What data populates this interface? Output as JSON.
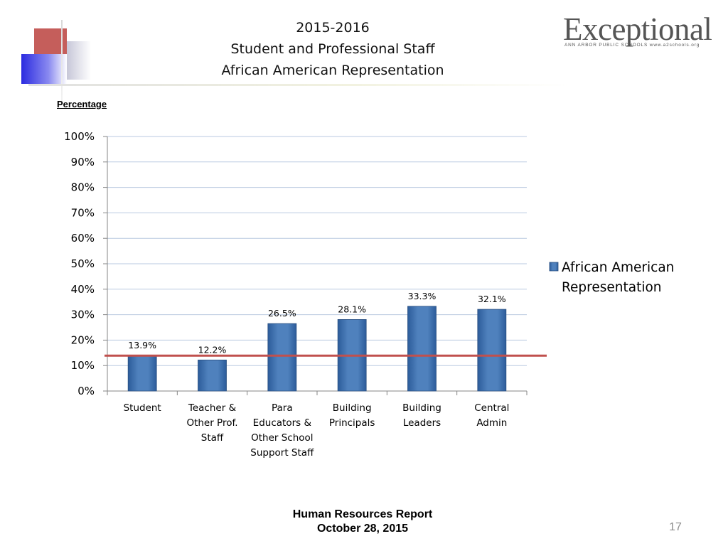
{
  "slide": {
    "title_lines": [
      "2015-2016",
      "Student and Professional Staff",
      "African American Representation"
    ],
    "page_number": "17",
    "footer_lines": [
      "Human Resources  Report",
      "October 28, 2015"
    ]
  },
  "logo": {
    "wordmark": "Exceptional",
    "tagline": "ANN ARBOR PUBLIC SCHOOLS www.a2schools.org"
  },
  "colors": {
    "bar": "#4f81bd",
    "bar_dark": "#2c5c9a",
    "reference_line": "#c0504d",
    "grid": "#b9c9e0"
  },
  "chart_data": {
    "type": "bar",
    "ylabel": "Percentage",
    "ylim": [
      0,
      100
    ],
    "yticks": [
      "0%",
      "10%",
      "20%",
      "30%",
      "40%",
      "50%",
      "60%",
      "70%",
      "80%",
      "90%",
      "100%"
    ],
    "grid": true,
    "legend_position": "right",
    "categories": [
      [
        "Student"
      ],
      [
        "Teacher &",
        "Other Prof.",
        "Staff"
      ],
      [
        "Para",
        "Educators &",
        "Other School",
        "Support Staff"
      ],
      [
        "Building",
        "Principals"
      ],
      [
        "Building",
        "Leaders"
      ],
      [
        "Central",
        "Admin"
      ]
    ],
    "series": [
      {
        "name": "African American Representation",
        "values": [
          13.9,
          12.2,
          26.5,
          28.1,
          33.3,
          32.1
        ],
        "labels": [
          "13.9%",
          "12.2%",
          "26.5%",
          "28.1%",
          "33.3%",
          "32.1%"
        ]
      }
    ],
    "reference_line_value": 13.9
  }
}
